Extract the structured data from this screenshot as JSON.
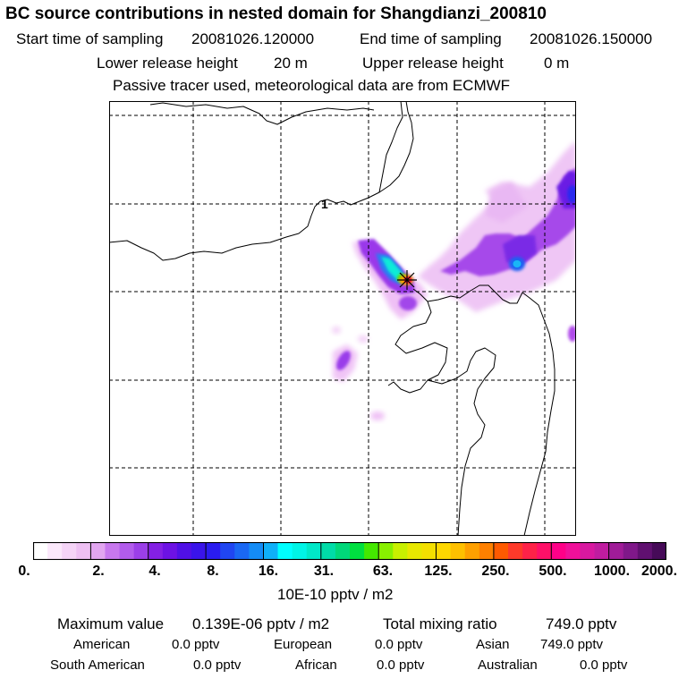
{
  "title": "BC  source contributions in nested domain for Shangdianzi_200810",
  "sampling": {
    "start_label": "Start time of sampling",
    "start_value": "20081026.120000",
    "end_label": "End time of sampling",
    "end_value": "20081026.150000"
  },
  "release": {
    "lower_label": "Lower release height",
    "lower_value": "20 m",
    "upper_label": "Upper release height",
    "upper_value": "0 m"
  },
  "note": "Passive tracer used, meteorological data are from ECMWF",
  "map": {
    "contour_label": "1",
    "station_marker": "station-star"
  },
  "colorbar": {
    "ticks": [
      "0.",
      "2.",
      "4.",
      "8.",
      "16.",
      "31.",
      "63.",
      "125.",
      "250.",
      "500.",
      "1000.",
      "2000."
    ],
    "colors": [
      "#ffffff",
      "#fbe8fb",
      "#f5d4f7",
      "#eec0f3",
      "#e2a6f0",
      "#c878ee",
      "#b25cec",
      "#9b3fe8",
      "#8420e4",
      "#6d12e4",
      "#5010e6",
      "#3a14ea",
      "#2a1cf0",
      "#2046f2",
      "#1a68f4",
      "#148cf6",
      "#0fb0f8",
      "#00ffff",
      "#00f4e6",
      "#00e8c8",
      "#00dca8",
      "#00d87a",
      "#00e040",
      "#44e800",
      "#88f000",
      "#c8f000",
      "#e8e800",
      "#f4e000",
      "#ffd800",
      "#ffc000",
      "#ffa000",
      "#ff8000",
      "#ff5a00",
      "#ff3a2a",
      "#ff2248",
      "#ff1068",
      "#ff0088",
      "#f0109a",
      "#d818a0",
      "#c01ca0",
      "#a01c98",
      "#80188a",
      "#601070",
      "#460a58"
    ],
    "unit": "10E-10 pptv / m2"
  },
  "summary": {
    "max_label": "Maximum value",
    "max_value": "0.139E-06 pptv / m2",
    "total_label": "Total mixing ratio",
    "total_value": "749.0 pptv"
  },
  "regions": [
    {
      "name": "American",
      "value": "0.0 pptv"
    },
    {
      "name": "European",
      "value": "0.0 pptv"
    },
    {
      "name": "Asian",
      "value": "749.0 pptv"
    },
    {
      "name": "South American",
      "value": "0.0 pptv"
    },
    {
      "name": "African",
      "value": "0.0 pptv"
    },
    {
      "name": "Australian",
      "value": "0.0 pptv"
    }
  ]
}
